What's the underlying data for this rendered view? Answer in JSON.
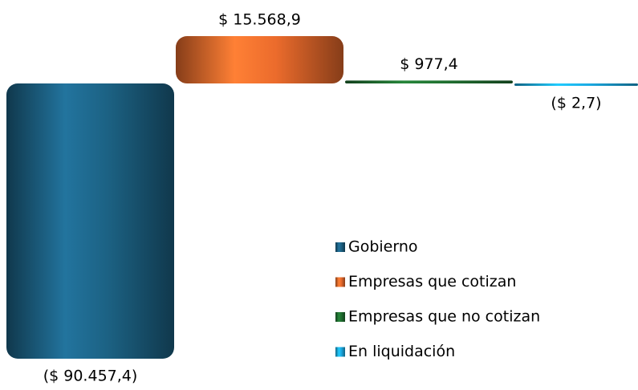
{
  "chart_data": {
    "type": "bar",
    "categories": [
      "Gobierno",
      "Empresas que cotizan",
      "Empresas que no cotizan",
      "En liquidación"
    ],
    "values": [
      -90457.4,
      15568.9,
      977.4,
      -2.7
    ],
    "value_labels": [
      "($ 90.457,4)",
      "$ 15.568,9",
      "$ 977,4",
      "($ 2,7)"
    ],
    "colors": [
      "#1b5d7e",
      "#e0662a",
      "#1e6b2e",
      "#1aa3d9"
    ],
    "legend": "right"
  }
}
